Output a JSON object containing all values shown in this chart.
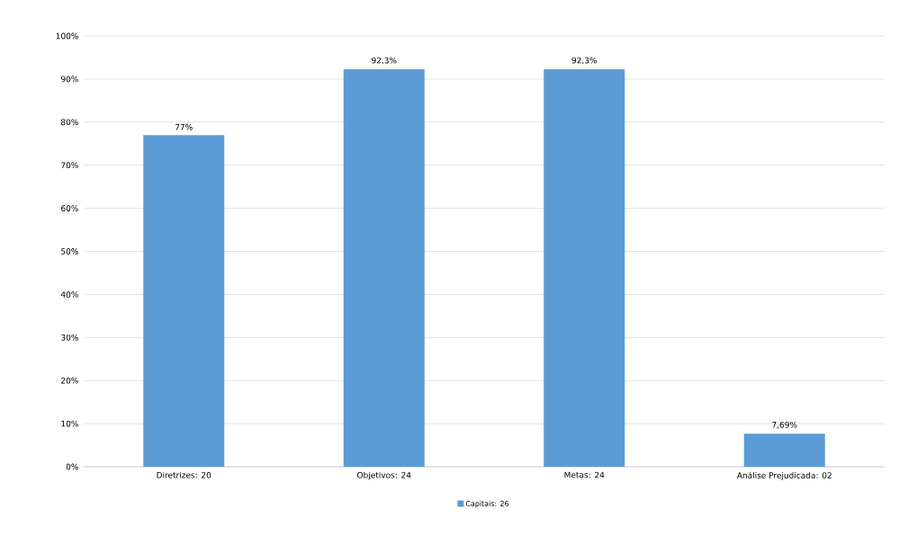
{
  "chart_data": {
    "type": "bar",
    "categories": [
      "Diretrizes: 20",
      "Objetivos: 24",
      "Metas: 24",
      "Análise Prejudicada: 02"
    ],
    "series": [
      {
        "name": "Capitais: 26",
        "color": "#5b9bd5",
        "values": [
          77,
          92.3,
          92.3,
          7.69
        ]
      }
    ],
    "value_labels": [
      "77%",
      "92,3%",
      "92,3%",
      "7,69%"
    ],
    "ylim": [
      0,
      100
    ],
    "yticks": [
      {
        "value": 0,
        "label": "0%"
      },
      {
        "value": 10,
        "label": "10%"
      },
      {
        "value": 20,
        "label": "20%"
      },
      {
        "value": 30,
        "label": "30%"
      },
      {
        "value": 40,
        "label": "40%"
      },
      {
        "value": 50,
        "label": "50%"
      },
      {
        "value": 60,
        "label": "60%"
      },
      {
        "value": 70,
        "label": "70%"
      },
      {
        "value": 80,
        "label": "80%"
      },
      {
        "value": 90,
        "label": "90%"
      },
      {
        "value": 100,
        "label": "100%"
      }
    ],
    "grid": "y",
    "legend": "bottom"
  }
}
